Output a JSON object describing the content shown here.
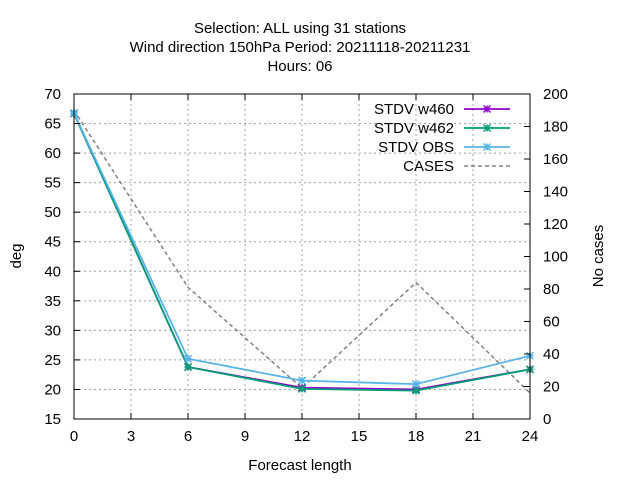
{
  "chart_data": {
    "type": "line",
    "title_lines": [
      "Selection: ALL using    31 stations",
      "Wind direction 150hPa   Period: 20211118-20211231",
      "Hours:  06"
    ],
    "xlabel": "Forecast length",
    "ylabel": "deg",
    "y2label": "No cases",
    "x": [
      0,
      6,
      12,
      18,
      24
    ],
    "xlim": [
      0,
      24
    ],
    "ylim": [
      15,
      70
    ],
    "y2lim": [
      0,
      200
    ],
    "xticks": [
      0,
      3,
      6,
      9,
      12,
      15,
      18,
      21,
      24
    ],
    "yticks": [
      15,
      20,
      25,
      30,
      35,
      40,
      45,
      50,
      55,
      60,
      65,
      70
    ],
    "y2ticks": [
      0,
      20,
      40,
      60,
      80,
      100,
      120,
      140,
      160,
      180,
      200
    ],
    "grid": true,
    "legend_position": "top-right",
    "series": [
      {
        "name": "STDV w460",
        "axis": "y",
        "color": "#9400d3",
        "dash": false,
        "marker": "x",
        "values": [
          66.7,
          23.8,
          20.3,
          20.0,
          23.4
        ]
      },
      {
        "name": "STDV w462",
        "axis": "y",
        "color": "#009e73",
        "dash": false,
        "marker": "x",
        "values": [
          66.7,
          23.8,
          20.1,
          19.8,
          23.4
        ]
      },
      {
        "name": "STDV OBS",
        "axis": "y",
        "color": "#56b4e9",
        "dash": false,
        "marker": "x",
        "values": [
          66.8,
          25.2,
          21.5,
          20.9,
          25.7
        ]
      },
      {
        "name": "CASES",
        "axis": "y2",
        "color": "#808080",
        "dash": true,
        "marker": "none",
        "values": [
          190,
          81,
          19,
          84,
          16
        ]
      }
    ]
  }
}
